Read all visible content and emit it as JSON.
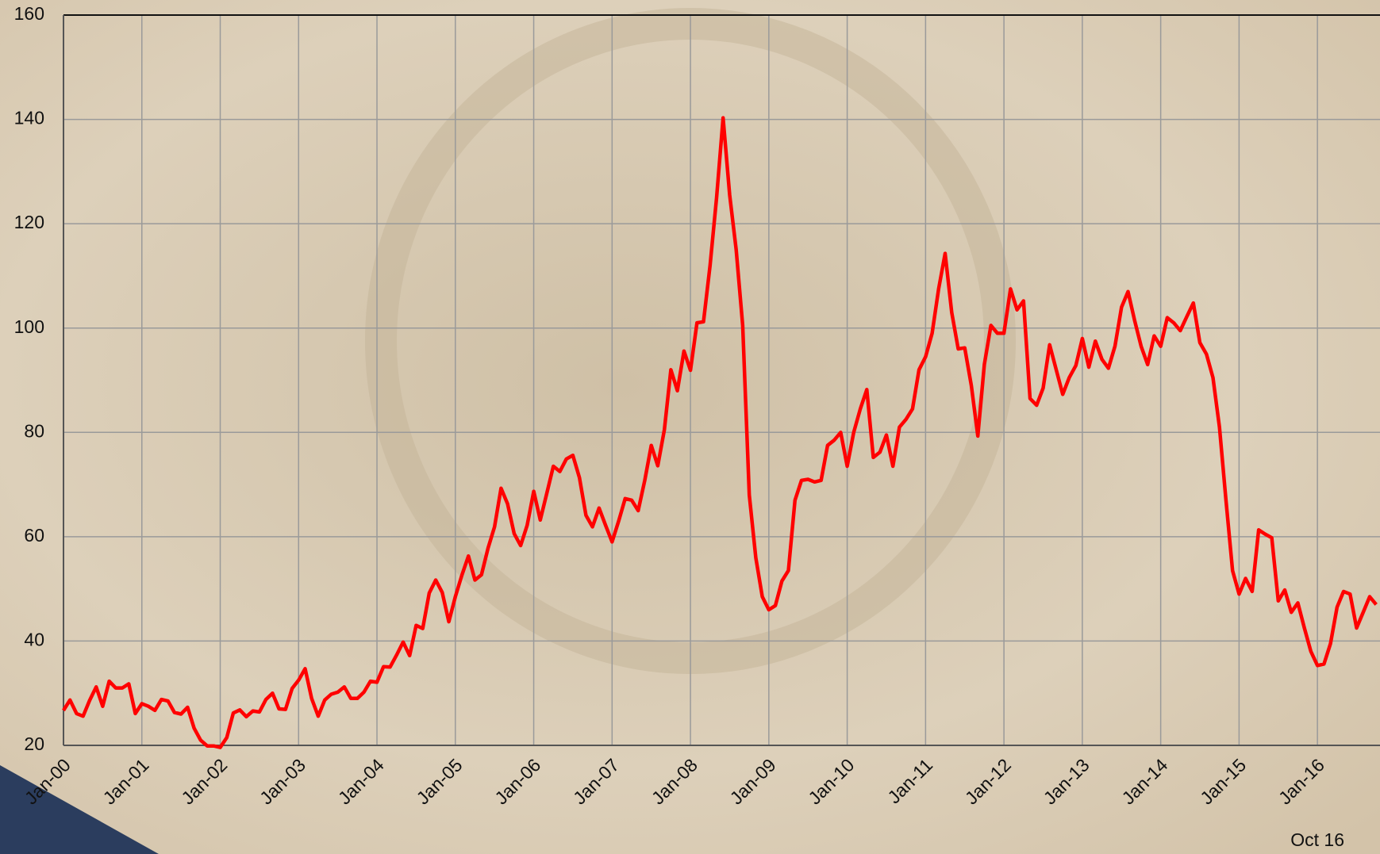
{
  "chart_data": {
    "type": "line",
    "categories": [
      "Jan-00",
      null,
      null,
      null,
      null,
      null,
      null,
      null,
      null,
      null,
      null,
      null,
      "Jan-01",
      null,
      null,
      null,
      null,
      null,
      null,
      null,
      null,
      null,
      null,
      null,
      "Jan-02",
      null,
      null,
      null,
      null,
      null,
      null,
      null,
      null,
      null,
      null,
      null,
      "Jan-03",
      null,
      null,
      null,
      null,
      null,
      null,
      null,
      null,
      null,
      null,
      null,
      "Jan-04",
      null,
      null,
      null,
      null,
      null,
      null,
      null,
      null,
      null,
      null,
      null,
      "Jan-05",
      null,
      null,
      null,
      null,
      null,
      null,
      null,
      null,
      null,
      null,
      null,
      "Jan-06",
      null,
      null,
      null,
      null,
      null,
      null,
      null,
      null,
      null,
      null,
      null,
      "Jan-07",
      null,
      null,
      null,
      null,
      null,
      null,
      null,
      null,
      null,
      null,
      null,
      "Jan-08",
      null,
      null,
      null,
      null,
      null,
      null,
      null,
      null,
      null,
      null,
      null,
      "Jan-09",
      null,
      null,
      null,
      null,
      null,
      null,
      null,
      null,
      null,
      null,
      null,
      "Jan-10",
      null,
      null,
      null,
      null,
      null,
      null,
      null,
      null,
      null,
      null,
      null,
      "Jan-11",
      null,
      null,
      null,
      null,
      null,
      null,
      null,
      null,
      null,
      null,
      null,
      "Jan-12",
      null,
      null,
      null,
      null,
      null,
      null,
      null,
      null,
      null,
      null,
      null,
      "Jan-13",
      null,
      null,
      null,
      null,
      null,
      null,
      null,
      null,
      null,
      null,
      null,
      "Jan-14",
      null,
      null,
      null,
      null,
      null,
      null,
      null,
      null,
      null,
      null,
      null,
      "Jan-15",
      null,
      null,
      null,
      null,
      null,
      null,
      null,
      null,
      null,
      null,
      null,
      "Jan-16",
      null,
      null,
      null,
      null,
      null,
      null,
      null,
      null,
      null
    ],
    "values": [
      26.7,
      28.7,
      26.1,
      25.6,
      28.6,
      31.2,
      27.5,
      32.3,
      31.0,
      31.0,
      31.8,
      26.1,
      28.0,
      27.5,
      26.7,
      28.8,
      28.5,
      26.3,
      26.0,
      27.3,
      23.3,
      21.0,
      19.9,
      19.9,
      19.6,
      21.5,
      26.2,
      26.8,
      25.5,
      26.6,
      26.4,
      28.8,
      30.0,
      27.0,
      26.9,
      30.9,
      32.5,
      34.7,
      29.0,
      25.6,
      28.7,
      29.8,
      30.2,
      31.2,
      29.0,
      29.0,
      30.2,
      32.3,
      32.1,
      35.1,
      35.0,
      37.3,
      39.8,
      37.2,
      43.0,
      42.4,
      49.2,
      51.7,
      49.3,
      43.7,
      48.5,
      52.6,
      56.3,
      51.7,
      52.7,
      57.8,
      61.9,
      69.3,
      66.3,
      60.6,
      58.3,
      62.2,
      68.7,
      63.2,
      68.3,
      73.5,
      72.5,
      74.9,
      75.6,
      71.3,
      64.1,
      61.9,
      65.5,
      62.2,
      59.0,
      63.0,
      67.3,
      67.0,
      65.0,
      70.8,
      77.5,
      73.6,
      80.5,
      92.0,
      88.0,
      95.6,
      91.9,
      101.0,
      101.2,
      112.0,
      125.0,
      140.3,
      125.5,
      115.0,
      100.5,
      68.0,
      56.0,
      48.5,
      46.0,
      46.8,
      51.5,
      53.5,
      67.0,
      70.8,
      71.0,
      70.5,
      70.8,
      77.5,
      78.5,
      80.0,
      73.5,
      80.0,
      84.5,
      88.2,
      75.2,
      76.2,
      79.5,
      73.5,
      81.0,
      82.5,
      84.5,
      92.0,
      94.5,
      99.0,
      107.5,
      114.3,
      103.0,
      96.0,
      96.2,
      89.0,
      79.3,
      93.0,
      100.5,
      99.0,
      99.0,
      107.5,
      103.5,
      105.2,
      86.5,
      85.2,
      88.5,
      96.8,
      92.0,
      87.3,
      90.5,
      92.8,
      98.0,
      92.5,
      97.5,
      94.0,
      92.3,
      96.5,
      104.0,
      107.0,
      101.5,
      96.5,
      93.0,
      98.5,
      96.5,
      102.0,
      101.0,
      99.5,
      102.2,
      104.8,
      97.2,
      95.0,
      90.5,
      81.0,
      67.0,
      53.5,
      49.0,
      52.0,
      49.5,
      61.3,
      60.5,
      59.8,
      47.7,
      49.8,
      45.5,
      47.3,
      42.5,
      38.0,
      35.3,
      35.6,
      39.5,
      46.5,
      49.5,
      49.0,
      42.5,
      45.5,
      48.5,
      47.0
    ],
    "color": "#ff0000",
    "ylim": [
      20,
      160
    ],
    "yticks": [
      20,
      40,
      60,
      80,
      100,
      120,
      140,
      160
    ],
    "grid": true,
    "annotation": "Oct 16"
  }
}
